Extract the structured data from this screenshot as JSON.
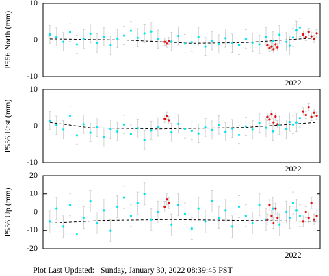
{
  "chart_data": [
    {
      "type": "scatter",
      "ylabel": "P556 North (mm)",
      "xlim": [
        2018.3,
        2022.4
      ],
      "xticks": [
        2022
      ],
      "ylim": [
        -10,
        10
      ],
      "yticks": [
        -10,
        0,
        10
      ],
      "series": [
        {
          "color": "#00e5ee",
          "x": [
            2018.4,
            2018.5,
            2018.6,
            2018.7,
            2018.8,
            2018.9,
            2019.0,
            2019.1,
            2019.2,
            2019.3,
            2019.4,
            2019.5,
            2019.6,
            2019.7,
            2019.8,
            2019.9,
            2020.0,
            2020.2,
            2020.3,
            2020.4,
            2020.5,
            2020.6,
            2020.7,
            2020.8,
            2020.9,
            2021.0,
            2021.1,
            2021.2,
            2021.3,
            2021.4,
            2021.5,
            2021.6,
            2021.7,
            2021.8,
            2021.9,
            2021.95,
            2022.0,
            2022.05,
            2022.1
          ],
          "values": [
            1.5,
            0.8,
            -0.5,
            2.1,
            -1.2,
            0.3,
            1.7,
            -0.8,
            0.9,
            -1.5,
            0.4,
            1.2,
            2.5,
            0.6,
            1.8,
            2.3,
            0.2,
            -0.4,
            1.1,
            -1.0,
            -0.6,
            0.8,
            -1.8,
            -0.2,
            -1.1,
            0.5,
            -0.9,
            -1.4,
            0.3,
            -0.7,
            -1.2,
            0.9,
            -0.3,
            1.4,
            -0.5,
            -1.6,
            0.7,
            2.6,
            3.4
          ],
          "errors": [
            2.5,
            2.5,
            2.5,
            2.5,
            2.5,
            2.5,
            2.5,
            2.5,
            2.5,
            2.5,
            2.5,
            2.5,
            2.5,
            2.5,
            2.5,
            2.5,
            2.5,
            2.5,
            2.5,
            2.5,
            2.5,
            2.5,
            2.5,
            2.5,
            2.5,
            2.5,
            2.5,
            2.5,
            2.5,
            2.5,
            2.5,
            2.5,
            2.5,
            2.5,
            2.5,
            2.5,
            2.5,
            2.5,
            2.5
          ]
        },
        {
          "color": "#e01010",
          "x": [
            2020.1,
            2020.13,
            2020.16,
            2021.62,
            2021.65,
            2021.68,
            2021.71,
            2021.74,
            2021.77,
            2022.15,
            2022.19,
            2022.23,
            2022.27,
            2022.31,
            2022.35
          ],
          "values": [
            -0.5,
            -1.0,
            -0.3,
            -1.5,
            -2.2,
            -1.8,
            -2.5,
            -1.2,
            -2.0,
            1.5,
            0.8,
            2.2,
            1.0,
            0.3,
            1.8
          ],
          "errors": [
            1,
            1,
            1,
            1,
            1,
            1,
            1,
            1,
            1,
            1,
            1,
            1,
            1,
            1,
            1
          ]
        }
      ],
      "trend": {
        "color": "#000000",
        "x": [
          2018.4,
          2019.5,
          2020.5,
          2021.3,
          2022.35
        ],
        "values": [
          0.3,
          0.0,
          -0.9,
          -0.7,
          0.6
        ]
      }
    },
    {
      "type": "scatter",
      "ylabel": "P556 East (mm)",
      "xlim": [
        2018.3,
        2022.4
      ],
      "xticks": [
        2022
      ],
      "ylim": [
        -10,
        10
      ],
      "yticks": [
        -10,
        0,
        10
      ],
      "series": [
        {
          "color": "#00e5ee",
          "x": [
            2018.4,
            2018.5,
            2018.6,
            2018.7,
            2018.8,
            2018.9,
            2019.0,
            2019.1,
            2019.2,
            2019.3,
            2019.4,
            2019.5,
            2019.6,
            2019.7,
            2019.8,
            2019.9,
            2020.0,
            2020.2,
            2020.3,
            2020.4,
            2020.5,
            2020.6,
            2020.7,
            2020.8,
            2020.9,
            2021.0,
            2021.1,
            2021.2,
            2021.3,
            2021.4,
            2021.5,
            2021.6,
            2021.7,
            2021.8,
            2021.9,
            2021.95,
            2022.0,
            2022.05,
            2022.1
          ],
          "values": [
            1.5,
            0.2,
            -1.0,
            2.8,
            -2.5,
            0.5,
            -1.8,
            -0.3,
            -3.0,
            -0.9,
            -1.5,
            0.4,
            -2.2,
            -0.6,
            -3.8,
            -1.2,
            -0.2,
            -1.7,
            0.6,
            -0.8,
            -1.3,
            -2.0,
            -0.4,
            -1.1,
            0.3,
            -1.6,
            -0.7,
            -2.4,
            -0.1,
            -1.0,
            0.8,
            -0.5,
            -1.4,
            0.2,
            -0.8,
            1.1,
            0.4,
            1.0,
            2.2
          ],
          "errors": [
            2.5,
            2.5,
            2.5,
            2.5,
            2.5,
            2.5,
            2.5,
            2.5,
            2.5,
            2.5,
            2.5,
            2.5,
            2.5,
            2.5,
            2.5,
            2.5,
            2.5,
            2.5,
            2.5,
            2.5,
            2.5,
            2.5,
            2.5,
            2.5,
            2.5,
            2.5,
            2.5,
            2.5,
            2.5,
            2.5,
            2.5,
            2.5,
            2.5,
            2.5,
            2.5,
            2.5,
            2.5,
            2.5,
            2.5
          ]
        },
        {
          "color": "#e01010",
          "x": [
            2020.1,
            2020.13,
            2020.16,
            2021.62,
            2021.65,
            2021.68,
            2021.71,
            2021.74,
            2021.77,
            2022.15,
            2022.19,
            2022.23,
            2022.27,
            2022.31,
            2022.35
          ],
          "values": [
            2.0,
            2.8,
            1.6,
            2.5,
            1.8,
            3.2,
            1.0,
            2.6,
            0.5,
            4.0,
            3.0,
            5.2,
            2.5,
            3.6,
            2.8
          ],
          "errors": [
            1,
            1,
            1,
            1,
            1,
            1,
            1,
            1,
            1,
            1,
            1,
            1,
            1,
            1,
            1
          ]
        }
      ],
      "trend": {
        "color": "#000000",
        "x": [
          2018.4,
          2019.0,
          2020.0,
          2021.3,
          2022.35
        ],
        "values": [
          1.0,
          -0.5,
          -0.8,
          -0.4,
          1.0
        ]
      }
    },
    {
      "type": "scatter",
      "ylabel": "P556 Up (mm)",
      "xlim": [
        2018.3,
        2022.4
      ],
      "xticks": [
        2022
      ],
      "ylim": [
        -20,
        20
      ],
      "yticks": [
        -20,
        -10,
        0,
        10,
        20
      ],
      "series": [
        {
          "color": "#00e5ee",
          "x": [
            2018.4,
            2018.5,
            2018.6,
            2018.7,
            2018.8,
            2018.9,
            2019.0,
            2019.1,
            2019.2,
            2019.3,
            2019.4,
            2019.5,
            2019.6,
            2019.7,
            2019.8,
            2019.9,
            2020.0,
            2020.2,
            2020.3,
            2020.4,
            2020.5,
            2020.6,
            2020.7,
            2020.8,
            2020.9,
            2021.0,
            2021.1,
            2021.2,
            2021.3,
            2021.4,
            2021.5,
            2021.6,
            2021.7,
            2021.8,
            2021.9,
            2021.95,
            2022.0,
            2022.05,
            2022.1
          ],
          "values": [
            -5,
            2,
            -8,
            4,
            -12,
            -3,
            6,
            -6,
            1,
            -10,
            3,
            8,
            -2,
            5,
            10,
            -4,
            0,
            -7,
            4,
            -1,
            -9,
            2,
            -5,
            6,
            -3,
            1,
            -8,
            3,
            -2,
            -6,
            4,
            -4,
            2,
            -7,
            0,
            -3,
            5,
            1,
            -2
          ],
          "errors": [
            6,
            6,
            6,
            6,
            6,
            6,
            6,
            6,
            6,
            6,
            6,
            6,
            6,
            6,
            6,
            6,
            6,
            6,
            6,
            6,
            6,
            6,
            6,
            6,
            6,
            6,
            6,
            6,
            6,
            6,
            6,
            6,
            6,
            6,
            6,
            6,
            6,
            6,
            6
          ]
        },
        {
          "color": "#e01010",
          "x": [
            2020.1,
            2020.13,
            2020.16,
            2021.62,
            2021.65,
            2021.68,
            2021.71,
            2021.74,
            2021.77,
            2022.15,
            2022.19,
            2022.23,
            2022.27,
            2022.31,
            2022.35
          ],
          "values": [
            3,
            7,
            5,
            -4,
            4,
            -2,
            -6,
            2,
            -3,
            -5,
            0,
            -3,
            5,
            -4,
            -2
          ],
          "errors": [
            3,
            3,
            3,
            3,
            3,
            3,
            3,
            3,
            3,
            3,
            3,
            3,
            3,
            3,
            3
          ]
        }
      ],
      "trend": {
        "color": "#000000",
        "x": [
          2018.4,
          2019.2,
          2020.2,
          2021.2,
          2022.35
        ],
        "values": [
          -6,
          -4.5,
          -4,
          -4.5,
          -5
        ]
      }
    }
  ],
  "footer": "Plot Last Updated:   Sunday, January 30, 2022 08:39:45 PST"
}
